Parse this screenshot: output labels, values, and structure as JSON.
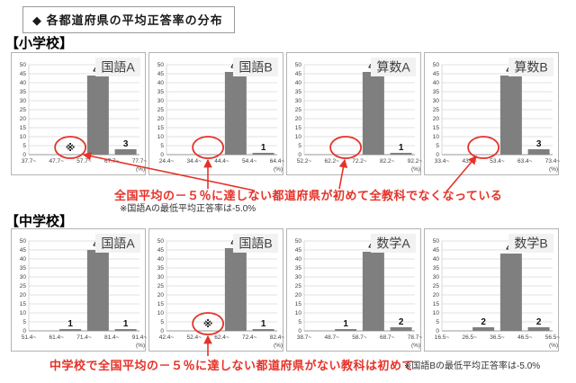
{
  "header": {
    "title": "◆ 各都道府県の平均正答率の分布"
  },
  "sections": {
    "elementary": "【小学校】",
    "junior_high": "【中学校】"
  },
  "annotations": {
    "elementary_highlight": "全国平均の－５％に達しない都道府県が初めて全教科でなくなっている",
    "elementary_note": "※国語Aの最低平均正答率は-5.0%",
    "junior_high_highlight": "中学校で全国平均の－５％に達しない都道府県がない教科は初めて",
    "junior_high_note": "※国語Bの最低平均正答率は-5.0%",
    "asterisk_symbol": "※"
  },
  "colors": {
    "bar": "#7f7f7f",
    "highlight_red": "#e53228",
    "grid": "#d9d9d9",
    "axis": "#9a9a9a",
    "tick_text": "#404040",
    "subject_box_bg": "#f2f2f2",
    "subject_text": "#3d3d3d"
  },
  "chart_data": [
    {
      "type": "bar",
      "section": "小学校",
      "title": "国語A",
      "bin_edges": [
        "37.7~",
        "47.7~",
        "57.7~",
        "67.7~",
        "77.7~"
      ],
      "values": [
        0,
        0,
        44,
        3
      ],
      "unit": "(%)",
      "ylim": [
        0,
        50
      ],
      "ytick_step": 5,
      "grid": true,
      "asterisk_bin": 1,
      "circled_bin": 1
    },
    {
      "type": "bar",
      "section": "小学校",
      "title": "国語B",
      "bin_edges": [
        "24.4~",
        "34.4~",
        "44.4~",
        "54.4~",
        "64.4~"
      ],
      "values": [
        0,
        0,
        46,
        1
      ],
      "unit": "(%)",
      "ylim": [
        0,
        50
      ],
      "ytick_step": 5,
      "grid": true,
      "asterisk_bin": null,
      "circled_bin": 1
    },
    {
      "type": "bar",
      "section": "小学校",
      "title": "算数A",
      "bin_edges": [
        "52.2~",
        "62.2~",
        "72.2~",
        "82.2~",
        "92.2~"
      ],
      "values": [
        0,
        0,
        46,
        1
      ],
      "unit": "(%)",
      "ylim": [
        0,
        50
      ],
      "ytick_step": 5,
      "grid": true,
      "asterisk_bin": null,
      "circled_bin": 1
    },
    {
      "type": "bar",
      "section": "小学校",
      "title": "算数B",
      "bin_edges": [
        "33.4~",
        "43.4~",
        "53.4~",
        "63.4~",
        "73.4~"
      ],
      "values": [
        0,
        0,
        44,
        3
      ],
      "unit": "(%)",
      "ylim": [
        0,
        50
      ],
      "ytick_step": 5,
      "grid": true,
      "asterisk_bin": null,
      "circled_bin": 1
    },
    {
      "type": "bar",
      "section": "中学校",
      "title": "国語A",
      "bin_edges": [
        "51.4~",
        "61.4~",
        "71.4~",
        "81.4~",
        "91.4~"
      ],
      "values": [
        0,
        1,
        45,
        1
      ],
      "unit": "(%)",
      "ylim": [
        0,
        50
      ],
      "ytick_step": 5,
      "grid": true,
      "asterisk_bin": null,
      "circled_bin": null
    },
    {
      "type": "bar",
      "section": "中学校",
      "title": "国語B",
      "bin_edges": [
        "42.4~",
        "52.4~",
        "62.4~",
        "72.4~",
        "82.4~"
      ],
      "values": [
        0,
        0,
        46,
        1
      ],
      "unit": "(%)",
      "ylim": [
        0,
        50
      ],
      "ytick_step": 5,
      "grid": true,
      "asterisk_bin": 1,
      "circled_bin": 1
    },
    {
      "type": "bar",
      "section": "中学校",
      "title": "数学A",
      "bin_edges": [
        "38.7~",
        "48.7~",
        "58.7~",
        "68.7~",
        "78.7~"
      ],
      "values": [
        0,
        1,
        44,
        2
      ],
      "unit": "(%)",
      "ylim": [
        0,
        50
      ],
      "ytick_step": 5,
      "grid": true,
      "asterisk_bin": null,
      "circled_bin": null
    },
    {
      "type": "bar",
      "section": "中学校",
      "title": "数学B",
      "bin_edges": [
        "16.5~",
        "26.5~",
        "36.5~",
        "46.5~",
        "56.5~"
      ],
      "values": [
        0,
        2,
        43,
        2
      ],
      "unit": "(%)",
      "ylim": [
        0,
        50
      ],
      "ytick_step": 5,
      "grid": true,
      "asterisk_bin": null,
      "circled_bin": null
    }
  ]
}
